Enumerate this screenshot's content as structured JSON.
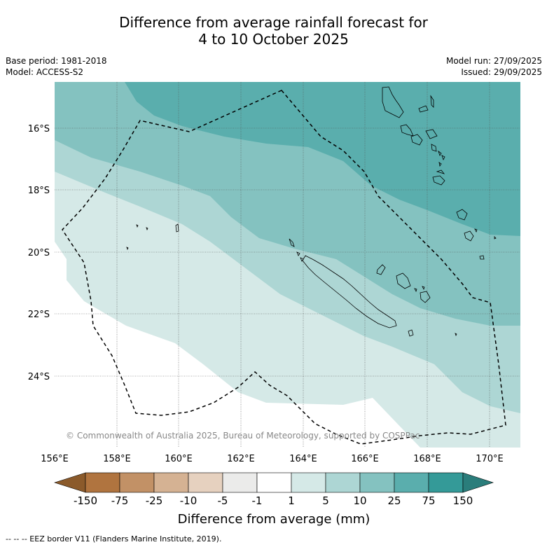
{
  "title": {
    "line1": "Difference from average rainfall forecast for",
    "line2": "4 to 10 October 2025"
  },
  "meta_left": {
    "base_period": "Base period: 1981-2018",
    "model": "Model: ACCESS-S2"
  },
  "meta_right": {
    "model_run": "Model run: 27/09/2025",
    "issued": "Issued: 29/09/2025"
  },
  "map": {
    "lat_labels": [
      "16°S",
      "18°S",
      "20°S",
      "22°S",
      "24°S"
    ],
    "lon_labels": [
      "156°E",
      "158°E",
      "160°E",
      "162°E",
      "164°E",
      "166°E",
      "168°E",
      "170°E"
    ],
    "copyright": "© Commonwealth of Australia 2025, Bureau of Meteorology, supported by COSPPac"
  },
  "legend": {
    "ticks": [
      "-150",
      "-75",
      "-25",
      "-10",
      "-5",
      "-1",
      "1",
      "5",
      "10",
      "25",
      "75",
      "150"
    ],
    "label": "Difference from average (mm)",
    "colors": {
      "below_150": "#8b5a2b",
      "m150_m75": "#b0743f",
      "m75_m25": "#c29166",
      "m25_m10": "#d5b293",
      "m10_m5": "#e6d1bf",
      "m5_m1": "#ebebea",
      "m1_1": "#ffffff",
      "p1_5": "#d5e9e7",
      "p5_10": "#add6d4",
      "p10_25": "#84c2c0",
      "p25_75": "#5aaead",
      "p75_150": "#349a98",
      "above_150": "#2a7d7b"
    }
  },
  "footnote": "--  --  -- EEZ border V11 (Flanders Marine Institute, 2019)."
}
